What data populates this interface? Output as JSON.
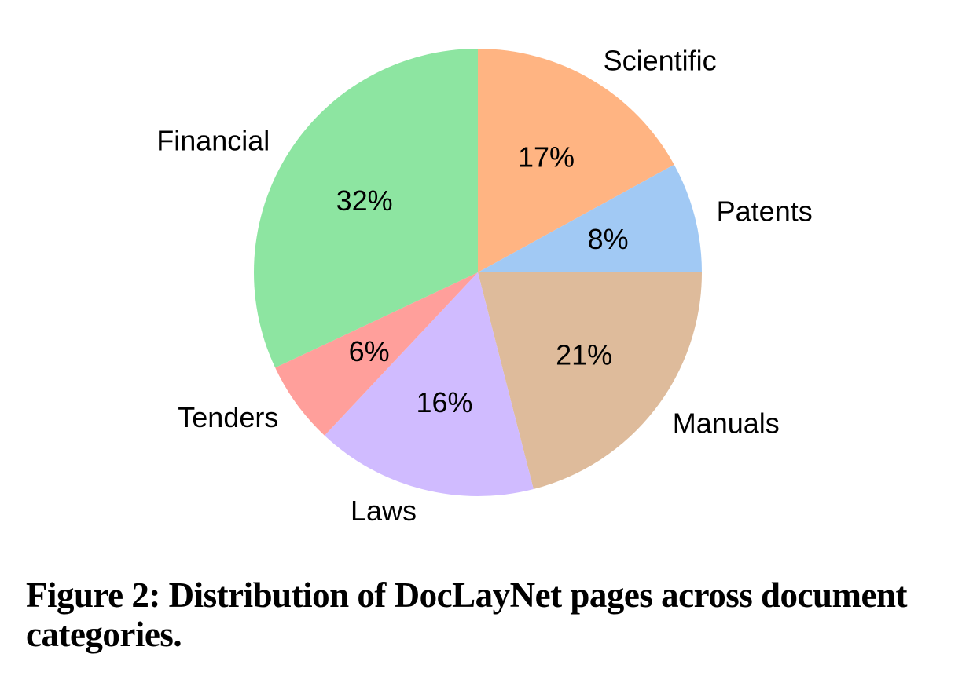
{
  "chart_data": {
    "type": "pie",
    "categories": [
      "Scientific",
      "Patents",
      "Manuals",
      "Laws",
      "Tenders",
      "Financial"
    ],
    "values": [
      17,
      8,
      21,
      16,
      6,
      32
    ],
    "value_labels": [
      "17%",
      "8%",
      "21%",
      "16%",
      "6%",
      "32%"
    ],
    "colors": [
      "#ffb482",
      "#a1c9f4",
      "#debb9b",
      "#d0bbff",
      "#ff9f9b",
      "#8de5a1"
    ],
    "start_position": "12-oclock",
    "direction": "clockwise",
    "label_distance_ratio": 1.1,
    "pct_distance_ratio": 0.6,
    "text_color": "#000000",
    "legend": "none",
    "title": ""
  },
  "caption": {
    "lines": [
      "Figure 2: Distribution of DocLayNet pages across document",
      "categories."
    ]
  }
}
